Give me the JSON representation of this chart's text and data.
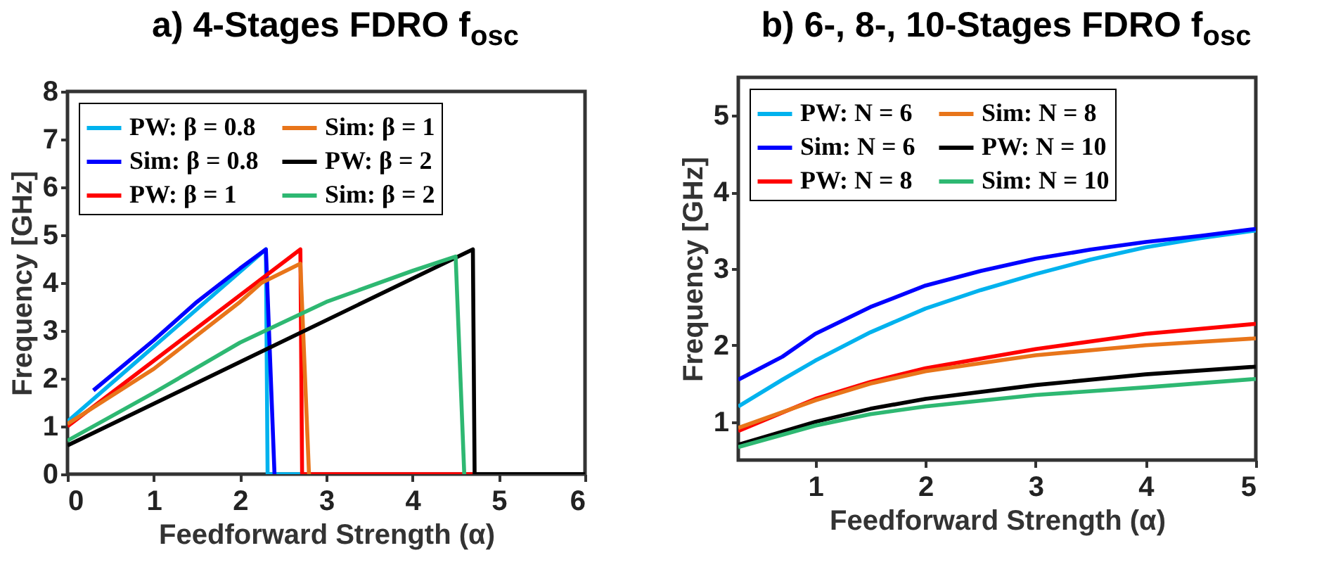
{
  "chart_data": [
    {
      "type": "line",
      "title": "a) 4-Stages FDRO f$_{osc}$",
      "xlabel": "Feedforward Strength (α)",
      "ylabel": "Frequency [GHz]",
      "xlim": [
        0,
        6
      ],
      "ylim": [
        0,
        8
      ],
      "xticks": [
        0,
        1,
        2,
        3,
        4,
        5,
        6
      ],
      "yticks": [
        0,
        1,
        2,
        3,
        4,
        5,
        6,
        7,
        8
      ],
      "grid": false,
      "legend": "top",
      "series": [
        {
          "name": "PW: β = 0.8",
          "color": "#00b2ee",
          "x": [
            0,
            2.3,
            2.32,
            2.7
          ],
          "values": [
            1.1,
            4.7,
            0,
            0
          ]
        },
        {
          "name": "Sim: β = 0.8",
          "color": "#0000ff",
          "x": [
            0.3,
            1,
            1.5,
            2,
            2.3,
            2.4
          ],
          "values": [
            1.75,
            2.8,
            3.6,
            4.3,
            4.7,
            0
          ]
        },
        {
          "name": "PW: β = 1",
          "color": "#ff0000",
          "x": [
            0,
            2.7,
            2.72,
            4.7
          ],
          "values": [
            1,
            4.7,
            0,
            0
          ]
        },
        {
          "name": "Sim: β = 1",
          "color": "#e8751a",
          "x": [
            0,
            1,
            2,
            2.25,
            2.7,
            2.8
          ],
          "values": [
            1.05,
            2.2,
            3.6,
            4.0,
            4.4,
            0
          ]
        },
        {
          "name": "PW: β = 2",
          "color": "#000000",
          "x": [
            0,
            4.7,
            4.72,
            6
          ],
          "values": [
            0.6,
            4.7,
            0,
            0
          ]
        },
        {
          "name": "Sim: β = 2",
          "color": "#2eb872",
          "x": [
            0,
            1,
            2,
            3,
            4,
            4.5,
            4.6
          ],
          "values": [
            0.7,
            1.7,
            2.75,
            3.6,
            4.25,
            4.55,
            0
          ]
        }
      ]
    },
    {
      "type": "line",
      "title": "b) 6-, 8-, 10-Stages FDRO f$_{osc}$",
      "xlabel": "Feedforward Strength (α)",
      "ylabel": "Frequency [GHz]",
      "xlim": [
        0.3,
        5
      ],
      "ylim": [
        0.5,
        5.5
      ],
      "xticks": [
        1,
        2,
        3,
        4,
        5
      ],
      "yticks": [
        1,
        2,
        3,
        4,
        5
      ],
      "grid": false,
      "legend": "top",
      "series": [
        {
          "name": "PW: N = 6",
          "color": "#00b2ee",
          "x": [
            0.3,
            0.7,
            1,
            1.5,
            2,
            2.5,
            3,
            3.5,
            4,
            4.5,
            5
          ],
          "values": [
            1.2,
            1.55,
            1.8,
            2.17,
            2.48,
            2.72,
            2.93,
            3.12,
            3.28,
            3.4,
            3.5
          ]
        },
        {
          "name": "Sim: N = 6",
          "color": "#0000ff",
          "x": [
            0.3,
            0.7,
            1,
            1.5,
            2,
            2.5,
            3,
            3.5,
            4,
            4.5,
            5
          ],
          "values": [
            1.55,
            1.85,
            2.15,
            2.5,
            2.78,
            2.97,
            3.13,
            3.25,
            3.35,
            3.43,
            3.52
          ]
        },
        {
          "name": "PW: N = 8",
          "color": "#ff0000",
          "x": [
            0.3,
            1,
            1.5,
            2,
            3,
            4,
            5
          ],
          "values": [
            0.88,
            1.3,
            1.52,
            1.7,
            1.95,
            2.15,
            2.28
          ]
        },
        {
          "name": "Sim: N = 8",
          "color": "#e8751a",
          "x": [
            0.3,
            1,
            1.5,
            2,
            3,
            4,
            5
          ],
          "values": [
            0.92,
            1.28,
            1.5,
            1.66,
            1.87,
            2.0,
            2.09
          ]
        },
        {
          "name": "PW: N = 10",
          "color": "#000000",
          "x": [
            0.3,
            1,
            1.5,
            2,
            3,
            4,
            5
          ],
          "values": [
            0.7,
            1.0,
            1.17,
            1.3,
            1.48,
            1.62,
            1.72
          ]
        },
        {
          "name": "Sim: N = 10",
          "color": "#2eb872",
          "x": [
            0.3,
            1,
            1.5,
            2,
            3,
            4,
            5
          ],
          "values": [
            0.67,
            0.95,
            1.1,
            1.2,
            1.35,
            1.45,
            1.56
          ]
        }
      ]
    }
  ]
}
